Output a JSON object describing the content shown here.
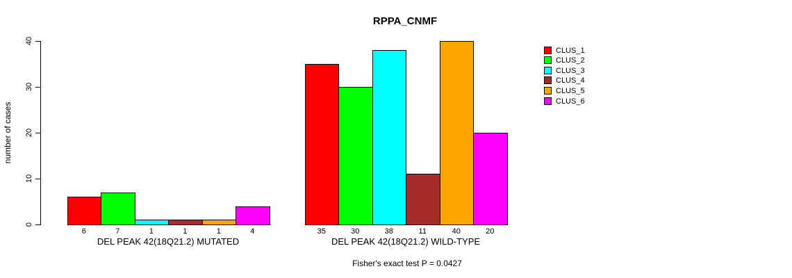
{
  "chart_data": {
    "type": "bar",
    "title": "RPPA_CNMF",
    "ylabel": "number of cases",
    "xlabel": "",
    "ylim": [
      0,
      40
    ],
    "yticks": [
      0,
      10,
      20,
      30,
      40
    ],
    "grid": false,
    "legend_position": "right",
    "annotation": "Fisher's exact test P = 0.0427",
    "bar_value_labels": true,
    "categories": [
      "DEL PEAK 42(18Q21.2) MUTATED",
      "DEL PEAK 42(18Q21.2) WILD-TYPE"
    ],
    "series": [
      {
        "name": "CLUS_1",
        "color": "#FF0000",
        "values": [
          6,
          35
        ]
      },
      {
        "name": "CLUS_2",
        "color": "#00FF00",
        "values": [
          7,
          30
        ]
      },
      {
        "name": "CLUS_3",
        "color": "#00FFFF",
        "values": [
          1,
          38
        ]
      },
      {
        "name": "CLUS_4",
        "color": "#A52A2A",
        "values": [
          1,
          11
        ]
      },
      {
        "name": "CLUS_5",
        "color": "#FFA500",
        "values": [
          1,
          40
        ]
      },
      {
        "name": "CLUS_6",
        "color": "#FF00FF",
        "values": [
          4,
          20
        ]
      }
    ]
  }
}
